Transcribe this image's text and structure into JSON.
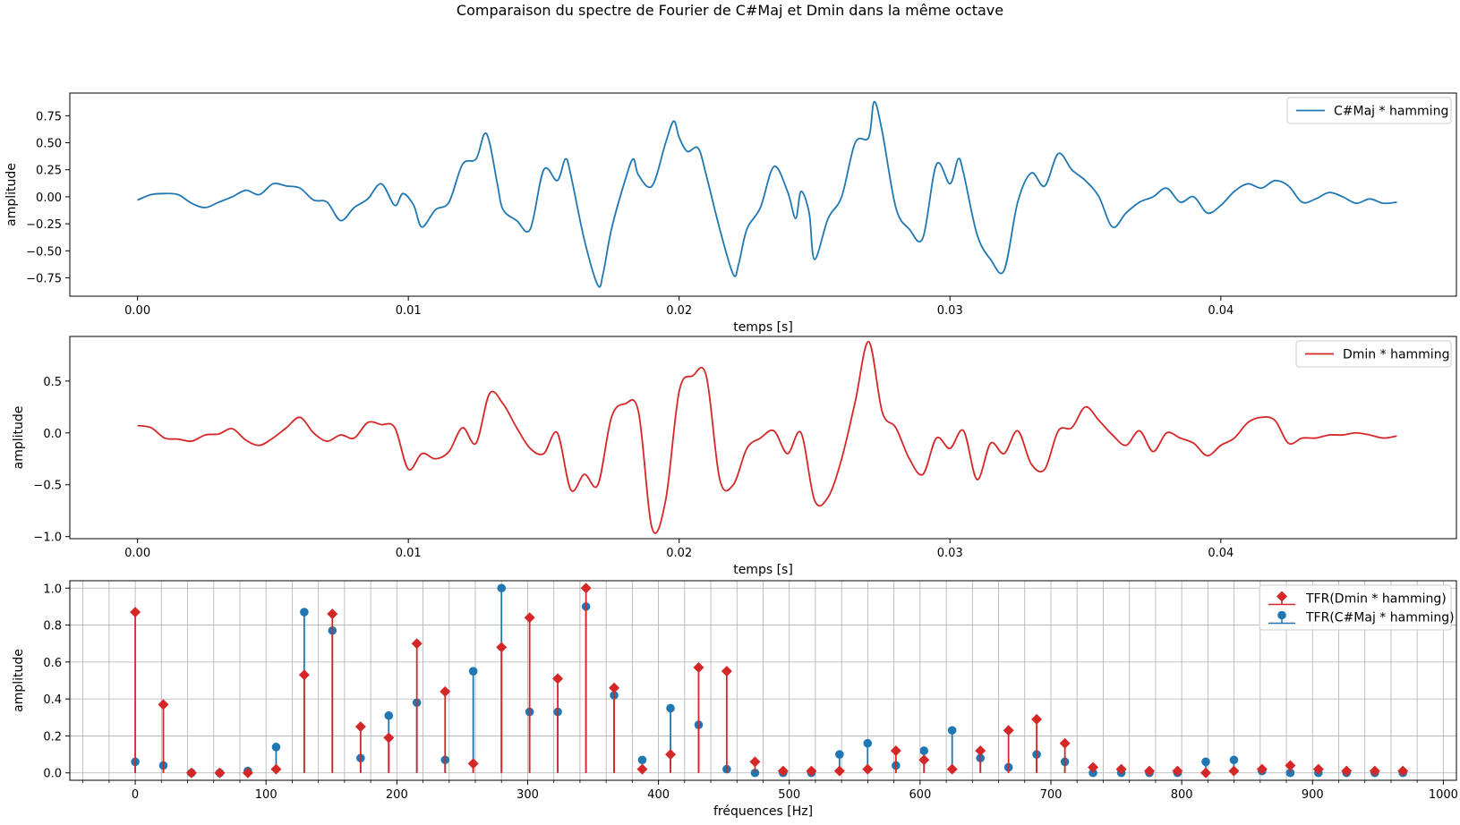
{
  "suptitle": "Comparaison du spectre de Fourier de C#Maj et Dmin dans la même octave",
  "colors": {
    "blue": "#1f77b4",
    "red": "#d62728",
    "grid": "#b0b0b0"
  },
  "chart_data": [
    {
      "type": "line",
      "xlabel": "temps [s]",
      "ylabel": "amplitude",
      "xlim": [
        -0.0025,
        0.0487
      ],
      "ylim": [
        -0.92,
        0.96
      ],
      "xticks": [
        0.0,
        0.01,
        0.02,
        0.03,
        0.04
      ],
      "xtick_labels": [
        "0.00",
        "0.01",
        "0.02",
        "0.03",
        "0.04"
      ],
      "yticks": [
        -0.75,
        -0.5,
        -0.25,
        0.0,
        0.25,
        0.5,
        0.75
      ],
      "ytick_labels": [
        "−0.75",
        "−0.50",
        "−0.25",
        "0.00",
        "0.25",
        "0.50",
        "0.75"
      ],
      "grid": false,
      "legend_position": "upper right",
      "series": [
        {
          "name": "C#Maj * hamming",
          "color": "#1f77b4",
          "x": [
            0.0,
            0.0005,
            0.001,
            0.0015,
            0.002,
            0.0025,
            0.003,
            0.0035,
            0.004,
            0.0045,
            0.005,
            0.0055,
            0.006,
            0.0065,
            0.007,
            0.0075,
            0.008,
            0.0085,
            0.009,
            0.0095,
            0.0098,
            0.0102,
            0.0105,
            0.011,
            0.0115,
            0.012,
            0.0125,
            0.0128,
            0.013,
            0.0133,
            0.0135,
            0.014,
            0.0145,
            0.015,
            0.0155,
            0.0158,
            0.016,
            0.0165,
            0.017,
            0.0172,
            0.0175,
            0.018,
            0.0183,
            0.0185,
            0.019,
            0.0195,
            0.0198,
            0.02,
            0.0203,
            0.0207,
            0.021,
            0.0215,
            0.022,
            0.0222,
            0.0225,
            0.023,
            0.0235,
            0.024,
            0.0243,
            0.0245,
            0.0248,
            0.025,
            0.0255,
            0.026,
            0.0265,
            0.027,
            0.0272,
            0.0275,
            0.028,
            0.0285,
            0.029,
            0.0295,
            0.03,
            0.0303,
            0.0305,
            0.031,
            0.0315,
            0.032,
            0.0325,
            0.033,
            0.0335,
            0.034,
            0.0345,
            0.035,
            0.0355,
            0.036,
            0.0365,
            0.037,
            0.0375,
            0.038,
            0.0385,
            0.039,
            0.0395,
            0.04,
            0.0405,
            0.041,
            0.0415,
            0.042,
            0.0425,
            0.043,
            0.0435,
            0.044,
            0.0445,
            0.045,
            0.0455,
            0.046,
            0.0465
          ],
          "y": [
            -0.03,
            0.02,
            0.03,
            0.02,
            -0.06,
            -0.1,
            -0.05,
            0.0,
            0.06,
            0.02,
            0.12,
            0.1,
            0.08,
            -0.03,
            -0.05,
            -0.22,
            -0.1,
            -0.02,
            0.12,
            -0.08,
            0.03,
            -0.08,
            -0.28,
            -0.12,
            -0.05,
            0.3,
            0.35,
            0.58,
            0.5,
            0.1,
            -0.12,
            -0.22,
            -0.3,
            0.25,
            0.15,
            0.35,
            0.2,
            -0.4,
            -0.82,
            -0.7,
            -0.3,
            0.15,
            0.35,
            0.2,
            0.1,
            0.5,
            0.7,
            0.55,
            0.42,
            0.45,
            0.2,
            -0.3,
            -0.72,
            -0.62,
            -0.3,
            -0.1,
            0.28,
            0.05,
            -0.2,
            0.05,
            -0.15,
            -0.58,
            -0.2,
            0.0,
            0.5,
            0.55,
            0.88,
            0.6,
            -0.1,
            -0.3,
            -0.38,
            0.3,
            0.12,
            0.35,
            0.22,
            -0.35,
            -0.58,
            -0.68,
            -0.05,
            0.22,
            0.1,
            0.4,
            0.25,
            0.15,
            0.0,
            -0.28,
            -0.15,
            -0.05,
            0.0,
            0.08,
            -0.05,
            0.0,
            -0.15,
            -0.08,
            0.05,
            0.12,
            0.08,
            0.15,
            0.1,
            -0.05,
            -0.02,
            0.04,
            0.0,
            -0.06,
            -0.02,
            -0.06,
            -0.05
          ]
        }
      ]
    },
    {
      "type": "line",
      "xlabel": "temps [s]",
      "ylabel": "amplitude",
      "xlim": [
        -0.0025,
        0.0487
      ],
      "ylim": [
        -1.02,
        0.93
      ],
      "xticks": [
        0.0,
        0.01,
        0.02,
        0.03,
        0.04
      ],
      "xtick_labels": [
        "0.00",
        "0.01",
        "0.02",
        "0.03",
        "0.04"
      ],
      "yticks": [
        -1.0,
        -0.5,
        0.0,
        0.5
      ],
      "ytick_labels": [
        "−1.0",
        "−0.5",
        "0.0",
        "0.5"
      ],
      "grid": false,
      "legend_position": "upper right",
      "series": [
        {
          "name": "Dmin * hamming",
          "color": "#d62728",
          "x": [
            0.0,
            0.0005,
            0.001,
            0.0015,
            0.002,
            0.0025,
            0.003,
            0.0035,
            0.004,
            0.0045,
            0.005,
            0.0055,
            0.006,
            0.0065,
            0.007,
            0.0075,
            0.008,
            0.0085,
            0.009,
            0.0095,
            0.01,
            0.0105,
            0.011,
            0.0115,
            0.012,
            0.0125,
            0.013,
            0.0135,
            0.014,
            0.0145,
            0.015,
            0.0155,
            0.016,
            0.0165,
            0.017,
            0.0175,
            0.018,
            0.0185,
            0.019,
            0.0195,
            0.02,
            0.0205,
            0.021,
            0.0215,
            0.022,
            0.0225,
            0.023,
            0.0235,
            0.024,
            0.0245,
            0.025,
            0.0255,
            0.026,
            0.0265,
            0.027,
            0.0275,
            0.028,
            0.0285,
            0.029,
            0.0295,
            0.03,
            0.0305,
            0.031,
            0.0315,
            0.032,
            0.0325,
            0.033,
            0.0335,
            0.034,
            0.0345,
            0.035,
            0.0355,
            0.036,
            0.0365,
            0.037,
            0.0375,
            0.038,
            0.0385,
            0.039,
            0.0395,
            0.04,
            0.0405,
            0.041,
            0.0415,
            0.042,
            0.0425,
            0.043,
            0.0435,
            0.044,
            0.0445,
            0.045,
            0.0455,
            0.046,
            0.0465
          ],
          "y": [
            0.07,
            0.05,
            -0.05,
            -0.06,
            -0.08,
            -0.02,
            -0.01,
            0.04,
            -0.07,
            -0.12,
            -0.05,
            0.05,
            0.15,
            0.0,
            -0.08,
            -0.02,
            -0.05,
            0.1,
            0.08,
            0.05,
            -0.35,
            -0.2,
            -0.25,
            -0.18,
            0.05,
            -0.1,
            0.38,
            0.28,
            0.05,
            -0.15,
            -0.2,
            0.0,
            -0.55,
            -0.4,
            -0.5,
            0.15,
            0.28,
            0.2,
            -0.92,
            -0.65,
            0.4,
            0.55,
            0.55,
            -0.45,
            -0.5,
            -0.15,
            -0.05,
            0.02,
            -0.2,
            0.0,
            -0.65,
            -0.62,
            -0.25,
            0.3,
            0.88,
            0.2,
            0.05,
            -0.25,
            -0.4,
            -0.05,
            -0.15,
            0.02,
            -0.45,
            -0.1,
            -0.2,
            0.02,
            -0.3,
            -0.35,
            0.02,
            0.05,
            0.25,
            0.12,
            -0.02,
            -0.12,
            0.02,
            -0.18,
            0.0,
            -0.05,
            -0.1,
            -0.22,
            -0.12,
            -0.05,
            0.1,
            0.15,
            0.12,
            -0.1,
            -0.05,
            -0.05,
            -0.02,
            -0.02,
            0.0,
            -0.02,
            -0.05,
            -0.03
          ]
        }
      ]
    },
    {
      "type": "stem",
      "xlabel": "fréquences [Hz]",
      "ylabel": "amplitude",
      "xlim": [
        -50,
        1010
      ],
      "ylim": [
        -0.04,
        1.04
      ],
      "xticks": [
        0,
        100,
        200,
        300,
        400,
        500,
        600,
        700,
        800,
        900,
        1000
      ],
      "xtick_labels": [
        "0",
        "100",
        "200",
        "300",
        "400",
        "500",
        "600",
        "700",
        "800",
        "900",
        "1000"
      ],
      "yticks": [
        0.0,
        0.2,
        0.4,
        0.6,
        0.8,
        1.0
      ],
      "ytick_labels": [
        "0.0",
        "0.2",
        "0.4",
        "0.6",
        "0.8",
        "1.0"
      ],
      "grid": true,
      "minor_xtick_step": 20,
      "legend_position": "upper right",
      "x": [
        0,
        21.5,
        43,
        64.6,
        86.1,
        107.7,
        129.2,
        150.7,
        172.3,
        193.8,
        215.3,
        236.9,
        258.4,
        280,
        301.5,
        323,
        344.6,
        366.1,
        387.6,
        409.2,
        430.7,
        452.2,
        473.8,
        495.3,
        516.9,
        538.4,
        559.9,
        581.5,
        603,
        624.5,
        646.1,
        667.6,
        689.1,
        710.7,
        732.2,
        753.8,
        775.3,
        796.8,
        818.4,
        839.9,
        861.4,
        883,
        904.5,
        926,
        947.6,
        969.1
      ],
      "series": [
        {
          "name": "TFR(Dmin * hamming)",
          "color": "#d62728",
          "marker": "diamond",
          "values": [
            0.87,
            0.37,
            0.0,
            0.0,
            0.0,
            0.02,
            0.53,
            0.86,
            0.25,
            0.19,
            0.7,
            0.44,
            0.05,
            0.68,
            0.84,
            0.51,
            1.0,
            0.46,
            0.02,
            0.1,
            0.57,
            0.55,
            0.06,
            0.01,
            0.01,
            0.01,
            0.02,
            0.12,
            0.07,
            0.02,
            0.12,
            0.23,
            0.29,
            0.16,
            0.03,
            0.02,
            0.01,
            0.01,
            0.0,
            0.01,
            0.02,
            0.04,
            0.02,
            0.01,
            0.01,
            0.01
          ]
        },
        {
          "name": "TFR(C#Maj * hamming)",
          "color": "#1f77b4",
          "marker": "circle",
          "values": [
            0.06,
            0.04,
            0.0,
            0.0,
            0.01,
            0.14,
            0.87,
            0.77,
            0.08,
            0.31,
            0.38,
            0.07,
            0.55,
            1.0,
            0.33,
            0.33,
            0.9,
            0.42,
            0.07,
            0.35,
            0.26,
            0.02,
            0.0,
            0.0,
            0.0,
            0.1,
            0.16,
            0.04,
            0.12,
            0.23,
            0.08,
            0.03,
            0.1,
            0.06,
            0.0,
            0.0,
            0.0,
            0.0,
            0.06,
            0.07,
            0.01,
            0.0,
            0.0,
            0.0,
            0.0,
            0.0
          ]
        }
      ]
    }
  ]
}
